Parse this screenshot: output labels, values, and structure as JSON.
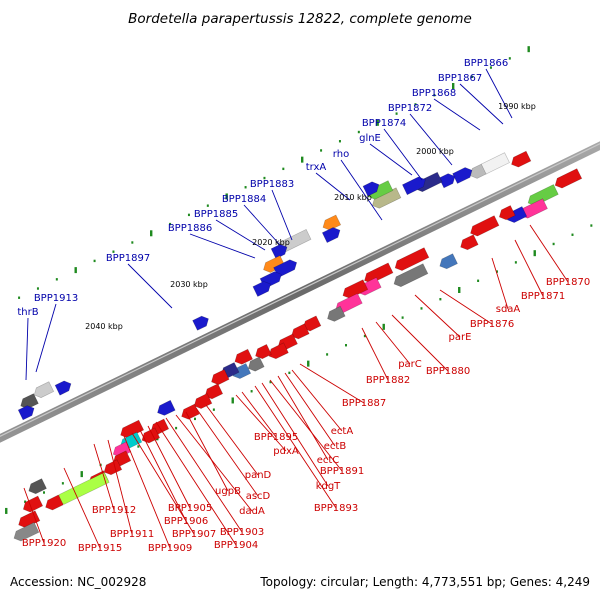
{
  "title": "Bordetella parapertussis 12822, complete genome",
  "footer": {
    "accession": "Accession: NC_002928",
    "summary": "Topology: circular; Length: 4,773,551 bp; Genes: 4,249"
  },
  "colors": {
    "forward_label": "#0000aa",
    "reverse_label": "#cc0000",
    "backbone": "#808080"
  },
  "kbp_marks": [
    "1990 kbp",
    "2000 kbp",
    "2010 kbp",
    "2020 kbp",
    "2030 kbp",
    "2040 kbp"
  ],
  "forward_labels": [
    "BPP1866",
    "BPP1867",
    "BPP1868",
    "BPP1872",
    "BPP1874",
    "glnE",
    "rho",
    "trxA",
    "BPP1883",
    "BPP1884",
    "BPP1885",
    "BPP1886",
    "BPP1897",
    "BPP1913",
    "thrB"
  ],
  "reverse_labels": [
    "BPP1870",
    "BPP1871",
    "sdaA",
    "BPP1876",
    "parE",
    "BPP1880",
    "parC",
    "BPP1882",
    "BPP1887",
    "ectA",
    "ectB",
    "ectC",
    "BPP1891",
    "kdgT",
    "BPP1893",
    "BPP1895",
    "pdxA",
    "panD",
    "ascD",
    "ugpB",
    "dadA",
    "BPP1903",
    "BPP1904",
    "BPP1905",
    "BPP1906",
    "BPP1907",
    "BPP1909",
    "BPP1911",
    "BPP1912",
    "BPP1915",
    "BPP1920"
  ]
}
